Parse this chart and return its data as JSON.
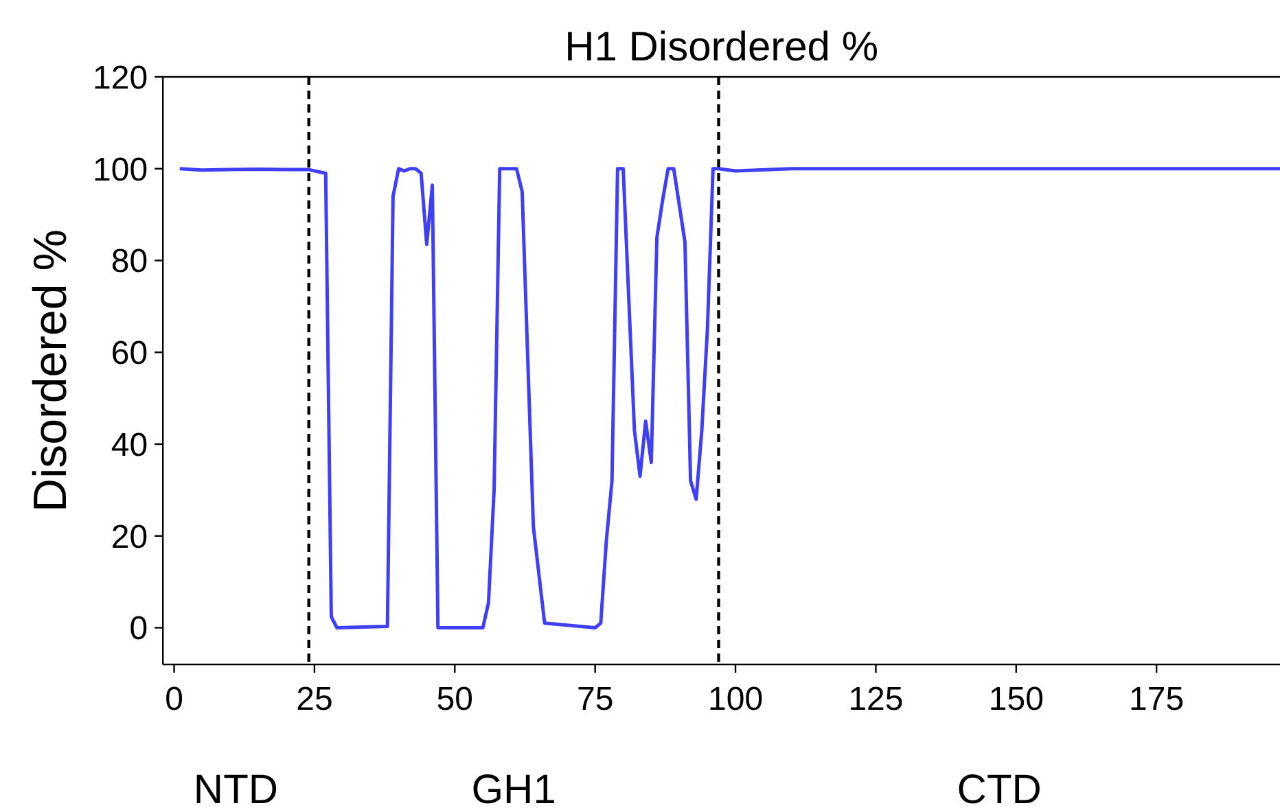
{
  "chart_data": {
    "type": "line",
    "title": "H1 Disordered %",
    "ylabel": "Disordered %",
    "annotations": [
      "NTD",
      "GH1",
      "CTD"
    ],
    "x": [
      1,
      5,
      10,
      15,
      20,
      24,
      27,
      28,
      29,
      38,
      39,
      40,
      41,
      42,
      43,
      44,
      45,
      46,
      47,
      55,
      56,
      57,
      58,
      61,
      62,
      64,
      66,
      75,
      76,
      77,
      78,
      79,
      80,
      82,
      83,
      84,
      85,
      86,
      87,
      88,
      89,
      91,
      92,
      93,
      94,
      95,
      96,
      97,
      100,
      110,
      130,
      150,
      170,
      197
    ],
    "series": [
      {
        "color": "#3f3ff5",
        "values": [
          100,
          99.7,
          99.8,
          99.9,
          99.8,
          99.8,
          99,
          2.4,
          0,
          0.3,
          94,
          100,
          99.5,
          100,
          100,
          99,
          83.5,
          96.4,
          0,
          0,
          5.4,
          30,
          100,
          100,
          95,
          22,
          1,
          0,
          1,
          19,
          32,
          100,
          100,
          43,
          33,
          45,
          36,
          85,
          93,
          100,
          100,
          84,
          32,
          28,
          43,
          65,
          100,
          100,
          99.5,
          100,
          100,
          100,
          100,
          100
        ]
      }
    ],
    "xlim": [
      -2,
      197
    ],
    "ylim": [
      -8,
      120
    ],
    "xticks": [
      0,
      25,
      50,
      75,
      100,
      125,
      150,
      175
    ],
    "yticks": [
      0,
      20,
      40,
      60,
      80,
      100,
      120
    ],
    "ref_lines": [
      {
        "axis": "x",
        "value": 24,
        "color": "#000000",
        "line_style": "dashed"
      },
      {
        "axis": "x",
        "value": 97,
        "color": "#000000",
        "line_style": "dashed"
      }
    ],
    "grid": false,
    "marker": "none",
    "line_style": "solid"
  }
}
